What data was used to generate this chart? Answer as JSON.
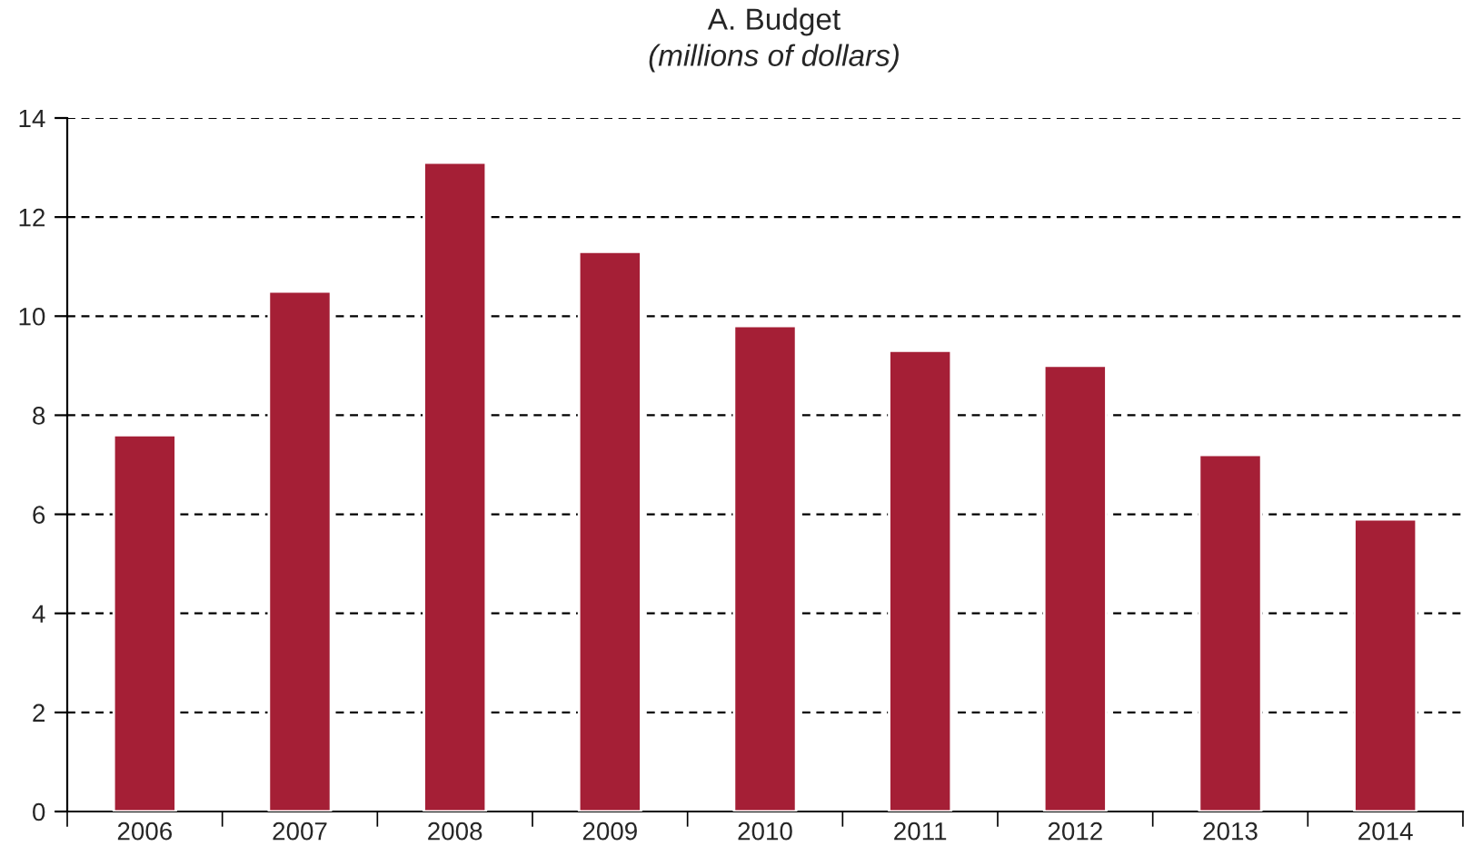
{
  "chart_data": {
    "type": "bar",
    "title": "A. Budget",
    "subtitle": "(millions of dollars)",
    "categories": [
      "2006",
      "2007",
      "2008",
      "2009",
      "2010",
      "2011",
      "2012",
      "2013",
      "2014"
    ],
    "values": [
      7.6,
      10.5,
      13.1,
      11.3,
      9.8,
      9.3,
      9.0,
      7.2,
      5.9
    ],
    "color": "#a51f36",
    "ylim": [
      0,
      14
    ],
    "yticks": [
      0,
      2,
      4,
      6,
      8,
      10,
      12,
      14
    ],
    "grid": "y",
    "legend": false
  }
}
